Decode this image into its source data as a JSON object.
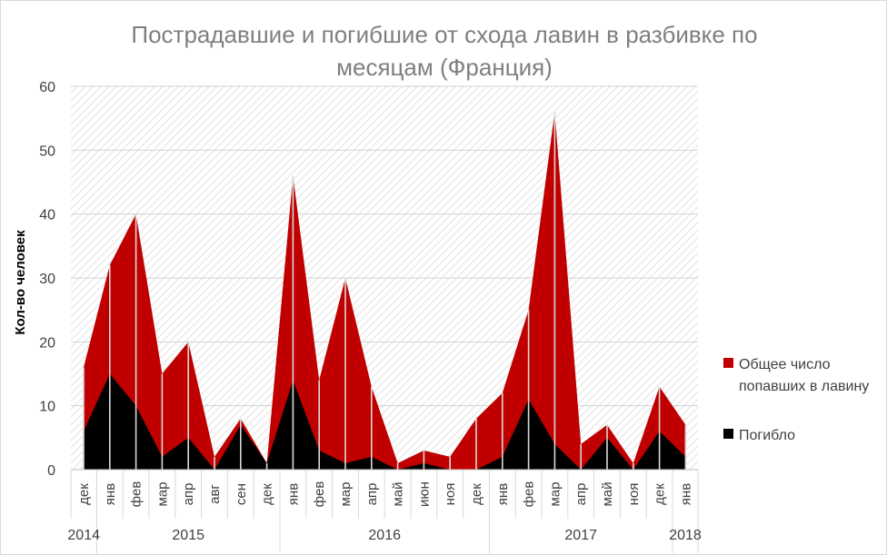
{
  "chart_data": {
    "type": "area",
    "title": "Пострадавшие и погибшие от схода лавин в разбивке по месяцам (Франция)",
    "title_lines": [
      "Пострадавшие и погибшие от схода лавин в разбивке по",
      "месяцам (Франция)"
    ],
    "ylabel": "Кол-во человек",
    "xlabel": "",
    "ylim": [
      0,
      60
    ],
    "yticks": [
      0,
      10,
      20,
      30,
      40,
      50,
      60
    ],
    "grid": true,
    "legend_position": "right",
    "categories": [
      "дек",
      "янв",
      "фев",
      "мар",
      "апр",
      "авг",
      "сен",
      "дек",
      "янв",
      "фев",
      "мар",
      "апр",
      "май",
      "июн",
      "ноя",
      "дек",
      "янв",
      "фев",
      "мар",
      "апр",
      "май",
      "ноя",
      "дек",
      "янв"
    ],
    "year_groups": [
      {
        "label": "2014",
        "count": 1
      },
      {
        "label": "2015",
        "count": 7
      },
      {
        "label": "2016",
        "count": 8
      },
      {
        "label": "2017",
        "count": 7
      },
      {
        "label": "2018",
        "count": 1
      }
    ],
    "series": [
      {
        "name": "Общее число попавших в лавину",
        "name_lines": [
          "Общее число",
          "попавших в лавину"
        ],
        "color": "#c00000",
        "values": [
          16,
          32,
          40,
          15,
          20,
          2,
          8,
          1,
          46,
          14,
          30,
          13,
          1,
          3,
          2,
          8,
          12,
          25,
          56,
          4,
          7,
          1,
          13,
          7
        ]
      },
      {
        "name": "Погибло",
        "name_lines": [
          "Погибло"
        ],
        "color": "#000000",
        "values": [
          6,
          15,
          10,
          2,
          5,
          0,
          7,
          1,
          14,
          3,
          1,
          2,
          0,
          1,
          0,
          0,
          2,
          11,
          4,
          0,
          5,
          0,
          6,
          2
        ]
      }
    ]
  }
}
